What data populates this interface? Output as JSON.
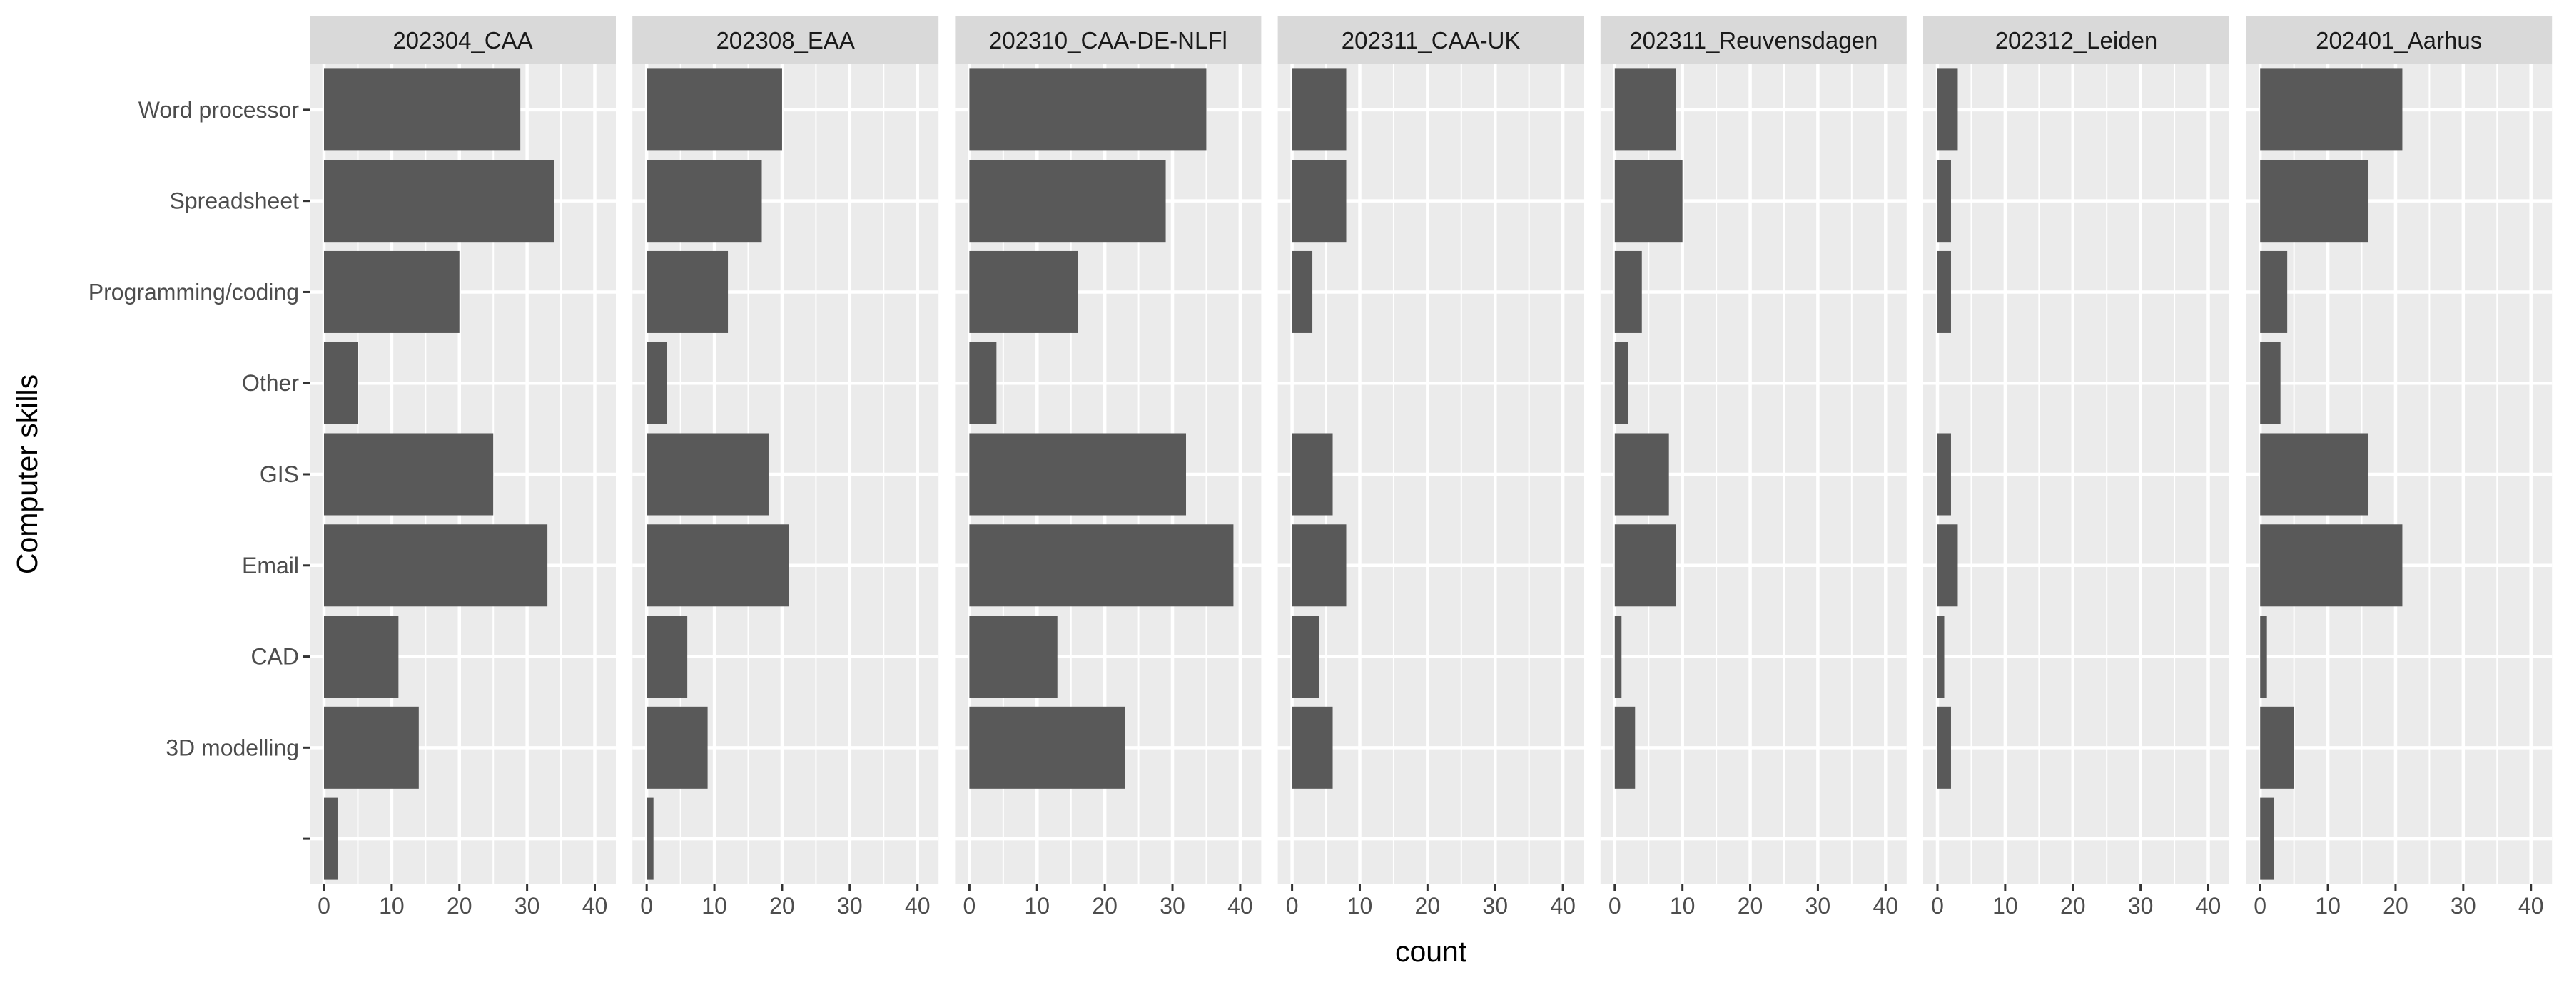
{
  "chart_data": {
    "type": "bar",
    "orientation": "horizontal",
    "faceted": true,
    "xlabel": "count",
    "ylabel": "Computer skills",
    "xlim": [
      0,
      41
    ],
    "x_ticks": [
      0,
      10,
      20,
      30,
      40
    ],
    "categories": [
      "Word processor",
      "Spreadsheet",
      "Programming/coding",
      "Other",
      "GIS",
      "Email",
      "CAD",
      "3D modelling",
      ""
    ],
    "bar_color": "#595959",
    "panel_background": "#ebebeb",
    "strip_background": "#d9d9d9",
    "grid": true,
    "series": [
      {
        "name": "202304_CAA",
        "values": [
          29,
          34,
          20,
          5,
          25,
          33,
          11,
          14,
          2
        ]
      },
      {
        "name": "202308_EAA",
        "values": [
          20,
          17,
          12,
          3,
          18,
          21,
          6,
          9,
          1
        ]
      },
      {
        "name": "202310_CAA-DE-NLFl",
        "values": [
          35,
          29,
          16,
          4,
          32,
          39,
          13,
          23,
          0
        ]
      },
      {
        "name": "202311_CAA-UK",
        "values": [
          8,
          8,
          3,
          0,
          6,
          8,
          4,
          6,
          0
        ]
      },
      {
        "name": "202311_Reuvensdagen",
        "values": [
          9,
          10,
          4,
          2,
          8,
          9,
          1,
          3,
          0
        ]
      },
      {
        "name": "202312_Leiden",
        "values": [
          3,
          2,
          2,
          0,
          2,
          3,
          1,
          2,
          0
        ]
      },
      {
        "name": "202401_Aarhus",
        "values": [
          21,
          16,
          4,
          3,
          16,
          21,
          1,
          5,
          2
        ]
      }
    ]
  }
}
